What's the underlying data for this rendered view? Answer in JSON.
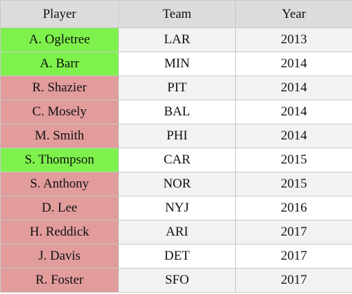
{
  "table": {
    "header": [
      "Player",
      "Team",
      "Year"
    ],
    "rows": [
      [
        "A. Ogletree",
        "LAR",
        "2013"
      ],
      [
        "A. Barr",
        "MIN",
        "2014"
      ],
      [
        "R. Shazier",
        "PIT",
        "2014"
      ],
      [
        "C. Mosely",
        "BAL",
        "2014"
      ],
      [
        "M. Smith",
        "PHI",
        "2014"
      ],
      [
        "S. Thompson",
        "CAR",
        "2015"
      ],
      [
        "S. Anthony",
        "NOR",
        "2015"
      ],
      [
        "D. Lee",
        "NYJ",
        "2016"
      ],
      [
        "H. Reddick",
        "ARI",
        "2017"
      ],
      [
        "J. Davis",
        "DET",
        "2017"
      ],
      [
        "R. Foster",
        "SFO",
        "2017"
      ]
    ],
    "player_fill": [
      "#7ef14c",
      "#7ef14c",
      "#e29c9c",
      "#e29c9c",
      "#e29c9c",
      "#7ef14c",
      "#e29c9c",
      "#e29c9c",
      "#e29c9c",
      "#e29c9c",
      "#e29c9c"
    ]
  }
}
